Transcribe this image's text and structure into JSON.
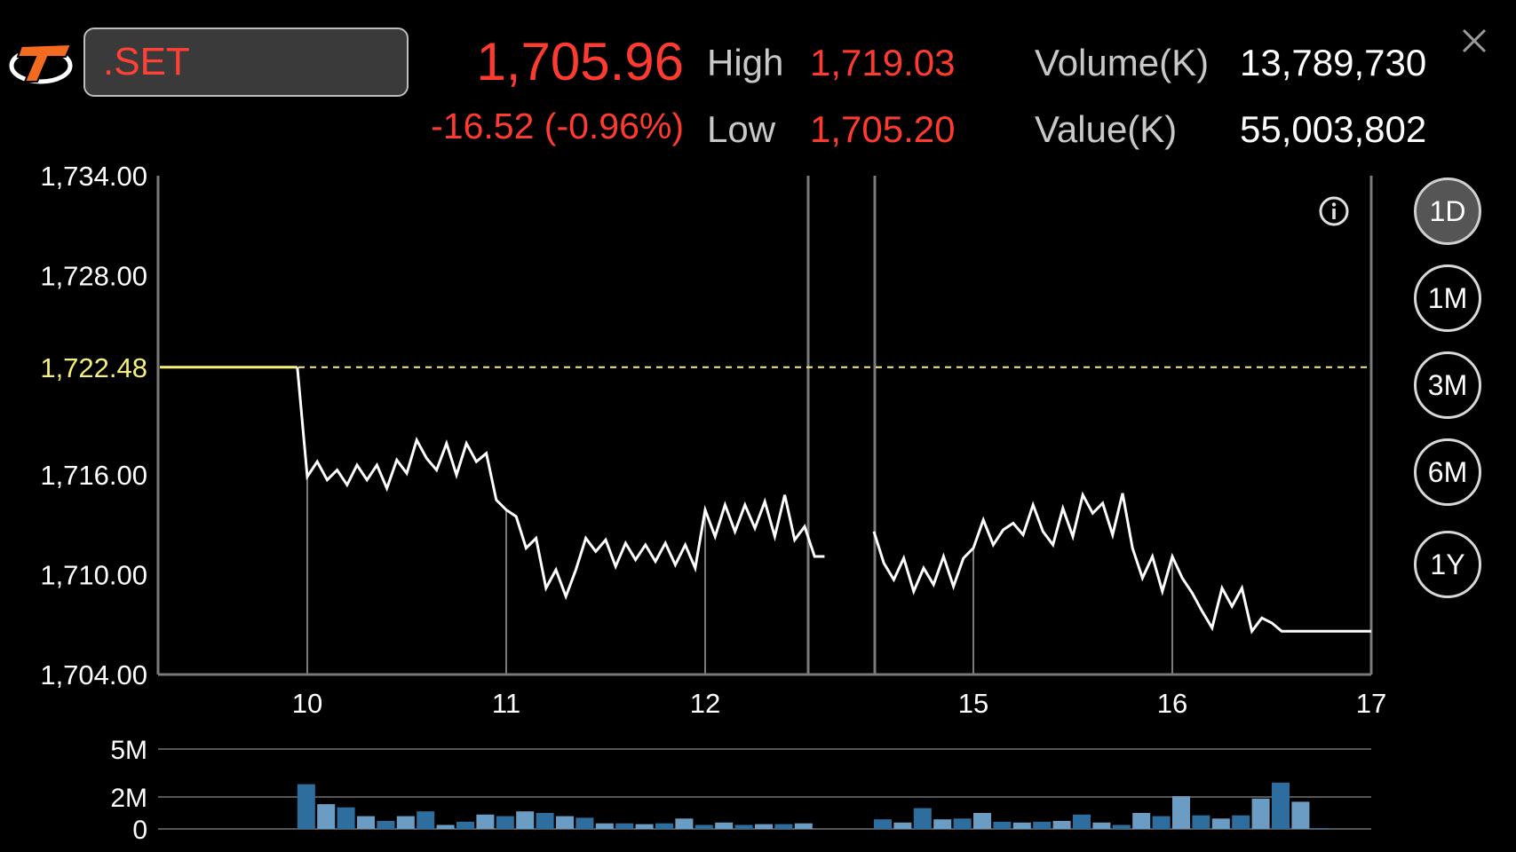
{
  "header": {
    "symbol": ".SET",
    "last_price": "1,705.96",
    "change": "-16.52 (-0.96%)",
    "high_label": "High",
    "high_value": "1,719.03",
    "low_label": "Low",
    "low_value": "1,705.20",
    "volume_label": "Volume(K)",
    "volume_value": "13,789,730",
    "value_label": "Value(K)",
    "value_value": "55,003,802"
  },
  "periods": [
    {
      "label": "1D",
      "active": true
    },
    {
      "label": "1M",
      "active": false
    },
    {
      "label": "3M",
      "active": false
    },
    {
      "label": "6M",
      "active": false
    },
    {
      "label": "1Y",
      "active": false
    }
  ],
  "icons": {
    "logo": "brand-logo-icon",
    "close": "close-icon",
    "info": "info-icon"
  },
  "colors": {
    "price_down": "#ff3b30",
    "reference_line": "#f5f07a",
    "volume_bar_dark": "#2e6e9e",
    "volume_bar_light": "#6a9cc4",
    "grid": "#7a7a7a"
  },
  "chart_data": [
    {
      "type": "line",
      "x_ticks": [
        "10",
        "11",
        "12",
        "15",
        "16",
        "17"
      ],
      "y_ticks": [
        "1,734.00",
        "1,728.00",
        "1,722.48",
        "1,716.00",
        "1,710.00",
        "1,704.00"
      ],
      "ylim": [
        1704,
        1734
      ],
      "reference_value": 1722.48,
      "reference_label": "1,722.48",
      "session_gap": {
        "after_hour": 12.5,
        "resume_hour": 14.5
      },
      "series": [
        {
          "points": [
            [
              9.25,
              1722.48
            ],
            [
              9.5,
              1722.48
            ],
            [
              9.75,
              1722.48
            ],
            [
              9.95,
              1722.48
            ],
            [
              10.0,
              1715.9
            ],
            [
              10.05,
              1716.8
            ],
            [
              10.1,
              1715.7
            ],
            [
              10.15,
              1716.3
            ],
            [
              10.2,
              1715.4
            ],
            [
              10.25,
              1716.6
            ],
            [
              10.3,
              1715.7
            ],
            [
              10.35,
              1716.6
            ],
            [
              10.4,
              1715.2
            ],
            [
              10.45,
              1716.9
            ],
            [
              10.5,
              1716.1
            ],
            [
              10.55,
              1718.1
            ],
            [
              10.6,
              1717.0
            ],
            [
              10.65,
              1716.3
            ],
            [
              10.7,
              1717.9
            ],
            [
              10.75,
              1716.0
            ],
            [
              10.8,
              1717.9
            ],
            [
              10.85,
              1716.8
            ],
            [
              10.9,
              1717.3
            ],
            [
              10.95,
              1714.5
            ],
            [
              11.0,
              1713.9
            ],
            [
              11.05,
              1713.5
            ],
            [
              11.1,
              1711.6
            ],
            [
              11.15,
              1712.2
            ],
            [
              11.2,
              1709.2
            ],
            [
              11.25,
              1710.3
            ],
            [
              11.3,
              1708.7
            ],
            [
              11.35,
              1710.3
            ],
            [
              11.4,
              1712.2
            ],
            [
              11.45,
              1711.4
            ],
            [
              11.5,
              1712.1
            ],
            [
              11.55,
              1710.5
            ],
            [
              11.6,
              1711.9
            ],
            [
              11.65,
              1710.9
            ],
            [
              11.7,
              1711.8
            ],
            [
              11.75,
              1710.8
            ],
            [
              11.8,
              1711.9
            ],
            [
              11.85,
              1710.6
            ],
            [
              11.9,
              1711.8
            ],
            [
              11.95,
              1710.4
            ],
            [
              12.0,
              1713.9
            ],
            [
              12.05,
              1712.3
            ],
            [
              12.1,
              1714.2
            ],
            [
              12.15,
              1712.6
            ],
            [
              12.2,
              1714.2
            ],
            [
              12.25,
              1712.8
            ],
            [
              12.3,
              1714.4
            ],
            [
              12.35,
              1712.3
            ],
            [
              12.4,
              1714.8
            ],
            [
              12.45,
              1712.1
            ],
            [
              12.5,
              1712.9
            ],
            [
              12.55,
              1711.1
            ],
            [
              12.6,
              1711.1
            ]
          ]
        },
        {
          "points": [
            [
              14.5,
              1712.6
            ],
            [
              14.55,
              1710.7
            ],
            [
              14.6,
              1709.7
            ],
            [
              14.65,
              1711.0
            ],
            [
              14.7,
              1709.0
            ],
            [
              14.75,
              1710.4
            ],
            [
              14.8,
              1709.4
            ],
            [
              14.85,
              1711.1
            ],
            [
              14.9,
              1709.3
            ],
            [
              14.95,
              1711.0
            ],
            [
              15.0,
              1711.6
            ],
            [
              15.05,
              1713.3
            ],
            [
              15.1,
              1711.8
            ],
            [
              15.15,
              1712.7
            ],
            [
              15.2,
              1713.1
            ],
            [
              15.25,
              1712.4
            ],
            [
              15.3,
              1714.2
            ],
            [
              15.35,
              1712.6
            ],
            [
              15.4,
              1711.8
            ],
            [
              15.45,
              1714.0
            ],
            [
              15.5,
              1712.3
            ],
            [
              15.55,
              1714.8
            ],
            [
              15.6,
              1713.7
            ],
            [
              15.65,
              1714.3
            ],
            [
              15.7,
              1712.4
            ],
            [
              15.75,
              1714.9
            ],
            [
              15.8,
              1711.6
            ],
            [
              15.85,
              1709.8
            ],
            [
              15.9,
              1711.1
            ],
            [
              15.95,
              1709.0
            ],
            [
              16.0,
              1711.1
            ],
            [
              16.05,
              1709.8
            ],
            [
              16.1,
              1708.9
            ],
            [
              16.15,
              1707.8
            ],
            [
              16.2,
              1706.8
            ],
            [
              16.25,
              1709.2
            ],
            [
              16.3,
              1708.1
            ],
            [
              16.35,
              1709.2
            ],
            [
              16.4,
              1706.6
            ],
            [
              16.45,
              1707.4
            ],
            [
              16.5,
              1707.1
            ],
            [
              16.55,
              1706.6
            ],
            [
              16.75,
              1706.6
            ],
            [
              17.0,
              1706.6
            ]
          ]
        }
      ]
    },
    {
      "type": "bar",
      "y_ticks": [
        "5M",
        "2M",
        "0"
      ],
      "ylim": [
        0,
        5
      ],
      "unit": "M",
      "series": [
        {
          "bars": [
            [
              9.95,
              2.8
            ],
            [
              10.05,
              1.55
            ],
            [
              10.15,
              1.35
            ],
            [
              10.25,
              0.8
            ],
            [
              10.35,
              0.5
            ],
            [
              10.45,
              0.8
            ],
            [
              10.55,
              1.1
            ],
            [
              10.65,
              0.25
            ],
            [
              10.75,
              0.45
            ],
            [
              10.85,
              0.9
            ],
            [
              10.95,
              0.8
            ],
            [
              11.05,
              1.1
            ],
            [
              11.15,
              1.0
            ],
            [
              11.25,
              0.8
            ],
            [
              11.35,
              0.7
            ],
            [
              11.45,
              0.35
            ],
            [
              11.55,
              0.35
            ],
            [
              11.65,
              0.3
            ],
            [
              11.75,
              0.35
            ],
            [
              11.85,
              0.65
            ],
            [
              11.95,
              0.25
            ],
            [
              12.05,
              0.4
            ],
            [
              12.15,
              0.25
            ],
            [
              12.25,
              0.3
            ],
            [
              12.35,
              0.3
            ],
            [
              12.45,
              0.35
            ],
            [
              14.5,
              0.6
            ],
            [
              14.6,
              0.4
            ],
            [
              14.7,
              1.3
            ],
            [
              14.8,
              0.6
            ],
            [
              14.9,
              0.65
            ],
            [
              15.0,
              1.0
            ],
            [
              15.1,
              0.45
            ],
            [
              15.2,
              0.4
            ],
            [
              15.3,
              0.45
            ],
            [
              15.4,
              0.5
            ],
            [
              15.5,
              0.9
            ],
            [
              15.6,
              0.4
            ],
            [
              15.7,
              0.25
            ],
            [
              15.8,
              1.0
            ],
            [
              15.9,
              0.8
            ],
            [
              16.0,
              2.05
            ],
            [
              16.1,
              0.85
            ],
            [
              16.2,
              0.65
            ],
            [
              16.3,
              0.85
            ],
            [
              16.4,
              1.9
            ],
            [
              16.5,
              2.9
            ],
            [
              16.6,
              1.7
            ],
            [
              16.7,
              0.05
            ]
          ]
        }
      ]
    }
  ]
}
